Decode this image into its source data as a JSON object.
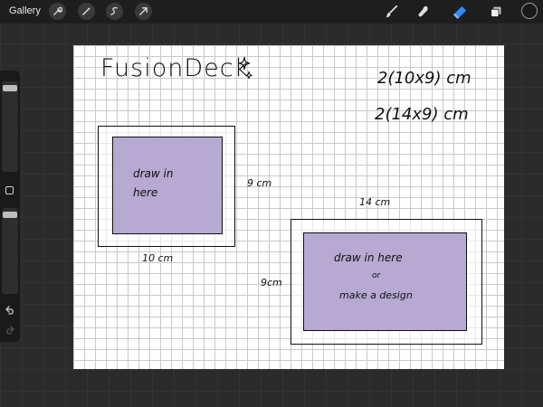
{
  "topbar": {
    "gallery_label": "Gallery",
    "left_tools": [
      "wrench-icon",
      "magic-wand-icon",
      "selection-icon",
      "transform-arrow-icon"
    ],
    "right_tools": [
      "brush-icon",
      "smudge-icon",
      "eraser-icon",
      "layers-icon",
      "color-icon"
    ],
    "active_tool": "eraser-icon",
    "accent_color": "#2f8cff"
  },
  "sidebar": {
    "brush_size_level": 0.96,
    "opacity_level": 0.96
  },
  "canvas": {
    "title": "FusionDeck",
    "sizes": [
      "2(10x9) cm",
      "2(14x9) cm"
    ],
    "box1": {
      "inner_text": "draw in\nhere",
      "width_label": "10 cm",
      "height_label": "9 cm"
    },
    "box2": {
      "inner_text_line1": "draw in here",
      "inner_text_line2": "or",
      "inner_text_line3": "make a design",
      "width_label": "14 cm",
      "height_label": "9cm"
    },
    "fill_color": "#b6a9d2"
  }
}
